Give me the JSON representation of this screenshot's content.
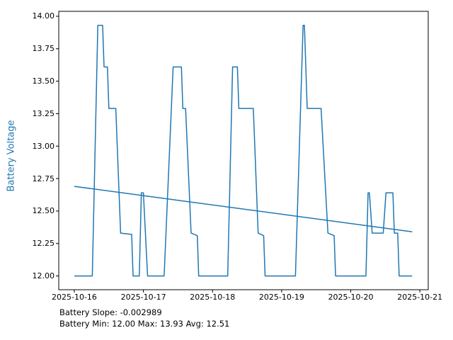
{
  "figure": {
    "ylabel": "Battery Voltage",
    "ylabel_color": "#1f77b4",
    "annotation_line1": "Battery Slope: -0.002989",
    "annotation_line2": "Battery Min: 12.00 Max: 13.93 Avg: 12.51"
  },
  "chart_data": {
    "type": "line",
    "title": "",
    "xlabel": "",
    "ylabel": "Battery Voltage",
    "x_unit": "days since 2025-10-16 00:00",
    "xlim": [
      -0.225,
      5.121
    ],
    "ylim": [
      11.894,
      14.038
    ],
    "grid": false,
    "legend": "none",
    "line_color": "#1f77b4",
    "axis_color": "#000000",
    "x_ticks": [
      {
        "value": 0,
        "label": "2025-10-16"
      },
      {
        "value": 1,
        "label": "2025-10-17"
      },
      {
        "value": 2,
        "label": "2025-10-18"
      },
      {
        "value": 3,
        "label": "2025-10-19"
      },
      {
        "value": 4,
        "label": "2025-10-20"
      },
      {
        "value": 5,
        "label": "2025-10-21"
      }
    ],
    "y_ticks": [
      {
        "value": 12.0,
        "label": "12.00"
      },
      {
        "value": 12.25,
        "label": "12.25"
      },
      {
        "value": 12.5,
        "label": "12.50"
      },
      {
        "value": 12.75,
        "label": "12.75"
      },
      {
        "value": 13.0,
        "label": "13.00"
      },
      {
        "value": 13.25,
        "label": "13.25"
      },
      {
        "value": 13.5,
        "label": "13.50"
      },
      {
        "value": 13.75,
        "label": "13.75"
      },
      {
        "value": 14.0,
        "label": "14.00"
      }
    ],
    "series": [
      {
        "name": "battery_voltage",
        "points": [
          [
            0.0,
            12.0
          ],
          [
            0.26,
            12.0
          ],
          [
            0.34,
            13.93
          ],
          [
            0.41,
            13.93
          ],
          [
            0.43,
            13.61
          ],
          [
            0.48,
            13.61
          ],
          [
            0.5,
            13.29
          ],
          [
            0.6,
            13.29
          ],
          [
            0.67,
            12.33
          ],
          [
            0.83,
            12.32
          ],
          [
            0.85,
            12.0
          ],
          [
            0.94,
            12.0
          ],
          [
            0.97,
            12.64
          ],
          [
            1.0,
            12.64
          ],
          [
            1.06,
            12.0
          ],
          [
            1.3,
            12.0
          ],
          [
            1.43,
            13.61
          ],
          [
            1.55,
            13.61
          ],
          [
            1.57,
            13.29
          ],
          [
            1.61,
            13.29
          ],
          [
            1.69,
            12.33
          ],
          [
            1.78,
            12.31
          ],
          [
            1.8,
            12.0
          ],
          [
            2.22,
            12.0
          ],
          [
            2.29,
            13.61
          ],
          [
            2.36,
            13.61
          ],
          [
            2.38,
            13.29
          ],
          [
            2.59,
            13.29
          ],
          [
            2.66,
            12.33
          ],
          [
            2.74,
            12.31
          ],
          [
            2.76,
            12.0
          ],
          [
            3.2,
            12.0
          ],
          [
            3.31,
            13.93
          ],
          [
            3.33,
            13.93
          ],
          [
            3.37,
            13.29
          ],
          [
            3.57,
            13.29
          ],
          [
            3.67,
            12.33
          ],
          [
            3.76,
            12.31
          ],
          [
            3.78,
            12.0
          ],
          [
            4.22,
            12.0
          ],
          [
            4.25,
            12.64
          ],
          [
            4.27,
            12.64
          ],
          [
            4.31,
            12.33
          ],
          [
            4.47,
            12.33
          ],
          [
            4.51,
            12.64
          ],
          [
            4.61,
            12.64
          ],
          [
            4.63,
            12.33
          ],
          [
            4.68,
            12.33
          ],
          [
            4.7,
            12.0
          ],
          [
            4.89,
            12.0
          ]
        ]
      },
      {
        "name": "trend_line",
        "points": [
          [
            0.0,
            12.69
          ],
          [
            4.89,
            12.34
          ]
        ]
      }
    ],
    "stats": {
      "slope": -0.002989,
      "min": 12.0,
      "max": 13.93,
      "avg": 12.51
    }
  }
}
